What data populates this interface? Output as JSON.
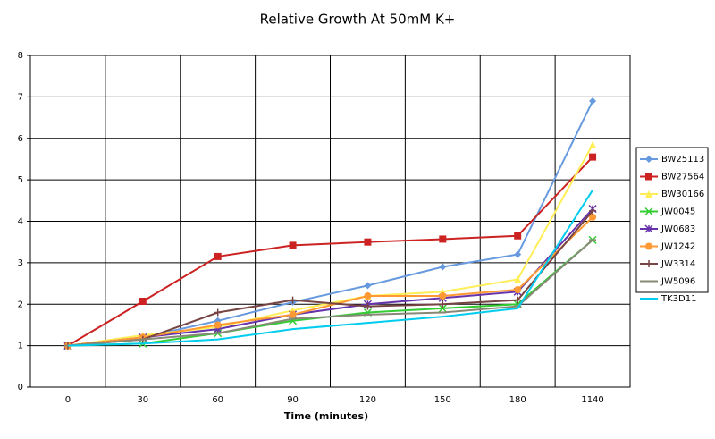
{
  "chart_data": {
    "type": "line",
    "title": "Relative Growth At 50mM K+",
    "x_label": "Time (minutes)",
    "categories": [
      "0",
      "30",
      "60",
      "90",
      "120",
      "150",
      "180",
      "1140"
    ],
    "ylim": [
      0,
      8
    ],
    "yticks": [
      0,
      1,
      2,
      3,
      4,
      5,
      6,
      7,
      8
    ],
    "grid": true,
    "legend": "right",
    "series": [
      {
        "name": "BW25113",
        "color": "#6699dd",
        "marker": "diamond",
        "values": [
          1.0,
          1.2,
          1.6,
          2.05,
          2.45,
          2.9,
          3.2,
          6.9
        ]
      },
      {
        "name": "BW27564",
        "color": "#cc2222",
        "marker": "square",
        "values": [
          1.0,
          2.07,
          3.15,
          3.42,
          3.5,
          3.57,
          3.65,
          5.55
        ]
      },
      {
        "name": "BW30166",
        "color": "#ffee55",
        "marker": "triangle",
        "values": [
          1.0,
          1.25,
          1.45,
          1.85,
          2.2,
          2.3,
          2.6,
          5.85
        ]
      },
      {
        "name": "JW0045",
        "color": "#33cc33",
        "marker": "x",
        "values": [
          1.0,
          1.05,
          1.3,
          1.6,
          1.8,
          1.9,
          2.0,
          3.55
        ]
      },
      {
        "name": "JW0683",
        "color": "#6633aa",
        "marker": "star",
        "values": [
          1.0,
          1.2,
          1.4,
          1.75,
          2.0,
          2.15,
          2.3,
          4.3
        ]
      },
      {
        "name": "JW1242",
        "color": "#ff9933",
        "marker": "circle",
        "values": [
          1.0,
          1.2,
          1.5,
          1.75,
          2.2,
          2.2,
          2.35,
          4.1
        ]
      },
      {
        "name": "JW3314",
        "color": "#774444",
        "marker": "plus",
        "values": [
          1.0,
          1.15,
          1.8,
          2.1,
          1.95,
          2.0,
          2.1,
          4.25
        ]
      },
      {
        "name": "JW5096",
        "color": "#888877",
        "marker": "dash",
        "values": [
          1.0,
          1.15,
          1.3,
          1.65,
          1.75,
          1.8,
          1.95,
          3.55
        ]
      },
      {
        "name": "TK3D11",
        "color": "#00ccee",
        "marker": "none",
        "values": [
          1.0,
          1.05,
          1.15,
          1.4,
          1.55,
          1.7,
          1.9,
          4.75
        ]
      }
    ]
  }
}
